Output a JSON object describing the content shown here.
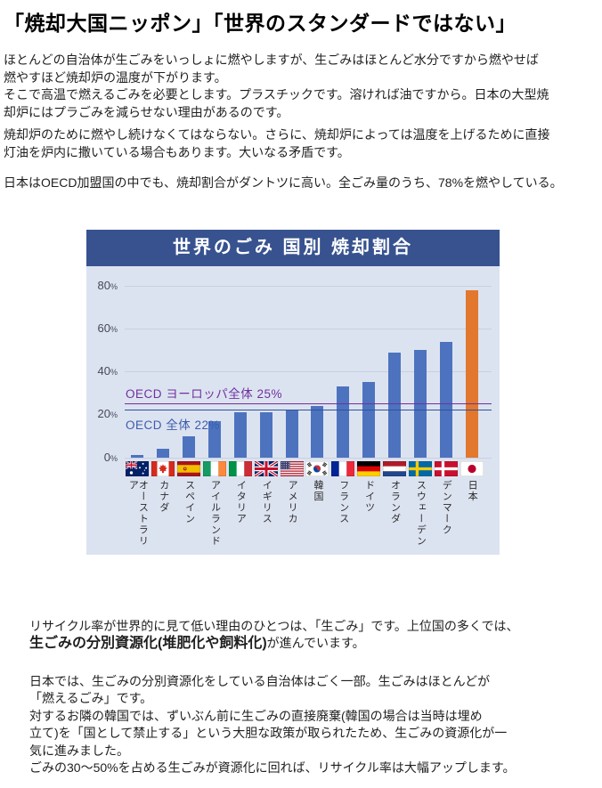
{
  "article": {
    "title": "「焼却大国ニッポン」「世界のスタンダードではない」",
    "paragraphs": [
      "ほとんどの自治体が生ごみをいっしょに燃やしますが、生ごみはほとんど水分ですから燃やせば\n燃やすほど焼却炉の温度が下がります。\nそこで高温で燃えるごみを必要とします。プラスチックです。溶ければ油ですから。日本の大型焼\n却炉にはプラごみを減らせない理由があるのです。",
      "焼却炉のために燃やし続けなくてはならない。さらに、焼却炉によっては温度を上げるために直接\n灯油を炉内に撒いている場合もあります。大いなる矛盾です。",
      "日本はOECD加盟国の中でも、焼却割合がダントツに高い。全ごみ量のうち、78%を燃やしている。"
    ]
  },
  "chart_data": {
    "type": "bar",
    "title": "世界のごみ 国別 焼却割合",
    "xlabel": "",
    "ylabel": "",
    "categories": [
      "オーストラリア",
      "カナダ",
      "スペイン",
      "アイルランド",
      "イタリア",
      "イギリス",
      "アメリカ",
      "韓国",
      "フランス",
      "ドイツ",
      "オランダ",
      "スウェーデン",
      "デンマーク",
      "日本"
    ],
    "flag_icons": [
      "flag-australia",
      "flag-canada",
      "flag-spain",
      "flag-ireland",
      "flag-italy",
      "flag-uk",
      "flag-usa",
      "flag-korea",
      "flag-france",
      "flag-germany",
      "flag-netherlands",
      "flag-sweden",
      "flag-denmark",
      "flag-japan"
    ],
    "values": [
      1,
      4,
      10,
      17,
      21,
      21,
      22,
      24,
      33,
      35,
      49,
      50,
      54,
      78
    ],
    "yticks": [
      0,
      20,
      40,
      60,
      80
    ],
    "ylim": [
      0,
      85
    ],
    "grid": true,
    "bar_color": "#4d73bf",
    "highlight_index": 13,
    "highlight_color": "#e2772e",
    "background_color": "#dce3f0",
    "header_color": "#37528f",
    "reference_lines": [
      {
        "label": "OECD ヨーロッパ全体 25%",
        "value": 25,
        "color": "#7030a0"
      },
      {
        "label": "OECD 全体 22%",
        "value": 22,
        "color": "#31519f",
        "label_color": "#3c5cae"
      }
    ]
  },
  "bottom": {
    "p1_line1": "リサイクル率が世界的に見て低い理由のひとつは、「生ごみ」です。上位国の多くでは、",
    "p1_bold": "生ごみの分別資源化(堆肥化や飼料化)",
    "p1_rest": "が進んでいます。",
    "p2": "日本では、生ごみの分別資源化をしている自治体はごく一部。生ごみはほとんどが\n「燃えるごみ」です。",
    "p3": "対するお隣の韓国では、ずいぶん前に生ごみの直接廃棄(韓国の場合は当時は埋め\n立て)を「国として禁止する」という大胆な政策が取られたため、生ごみの資源化が一\n気に進みました。",
    "p4": "ごみの30〜50%を占める生ごみが資源化に回れば、リサイクル率は大幅アップします。"
  }
}
